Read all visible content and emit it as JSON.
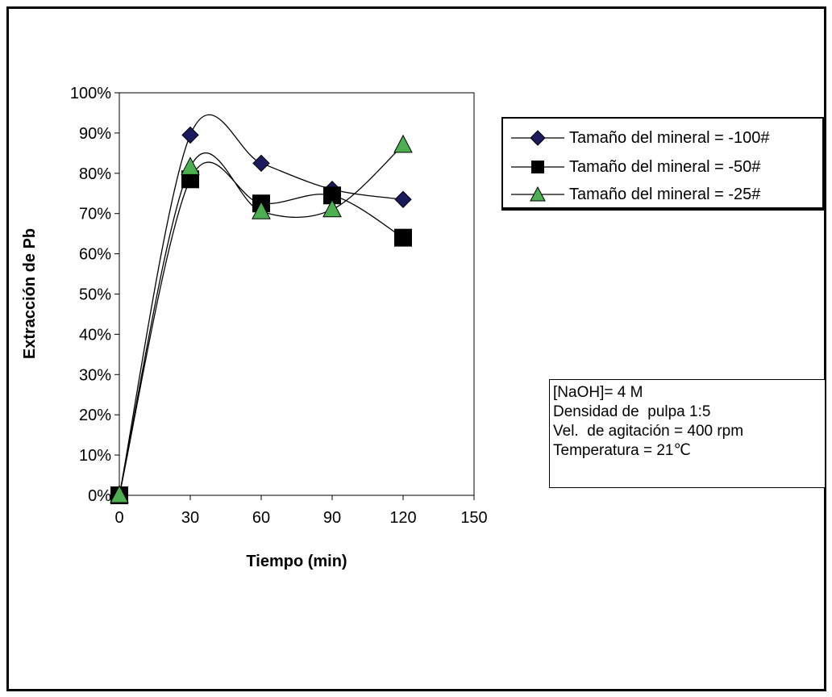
{
  "chart_data": {
    "type": "line",
    "xlabel": "Tiempo (min)",
    "ylabel": "Extracción de Pb",
    "x": [
      0,
      30,
      60,
      90,
      120
    ],
    "xlim": [
      0,
      150
    ],
    "xticks": [
      "0",
      "30",
      "60",
      "90",
      "120",
      "150"
    ],
    "ylim": [
      0,
      100
    ],
    "yticks": [
      "0%",
      "10%",
      "20%",
      "30%",
      "40%",
      "50%",
      "60%",
      "70%",
      "80%",
      "90%",
      "100%"
    ],
    "grid": false,
    "legend_position": "right",
    "series": [
      {
        "name": "Tamaño del mineral = -100#",
        "marker": "diamond",
        "marker_color": "#1a1a5c",
        "values": [
          0,
          89.5,
          82.5,
          76,
          73.5
        ]
      },
      {
        "name": "Tamaño del mineral = -50#",
        "marker": "square",
        "marker_color": "#000000",
        "values": [
          0,
          78.5,
          72.5,
          74.5,
          64
        ]
      },
      {
        "name": "Tamaño del mineral = -25#",
        "marker": "triangle",
        "marker_color": "#4caf50",
        "values": [
          0,
          81.5,
          70.5,
          71,
          87
        ]
      }
    ]
  },
  "notes": [
    "[NaOH]= 4 M",
    "Densidad de  pulpa 1:5",
    "Vel.  de agitación = 400 rpm",
    "Temperatura = 21℃"
  ]
}
